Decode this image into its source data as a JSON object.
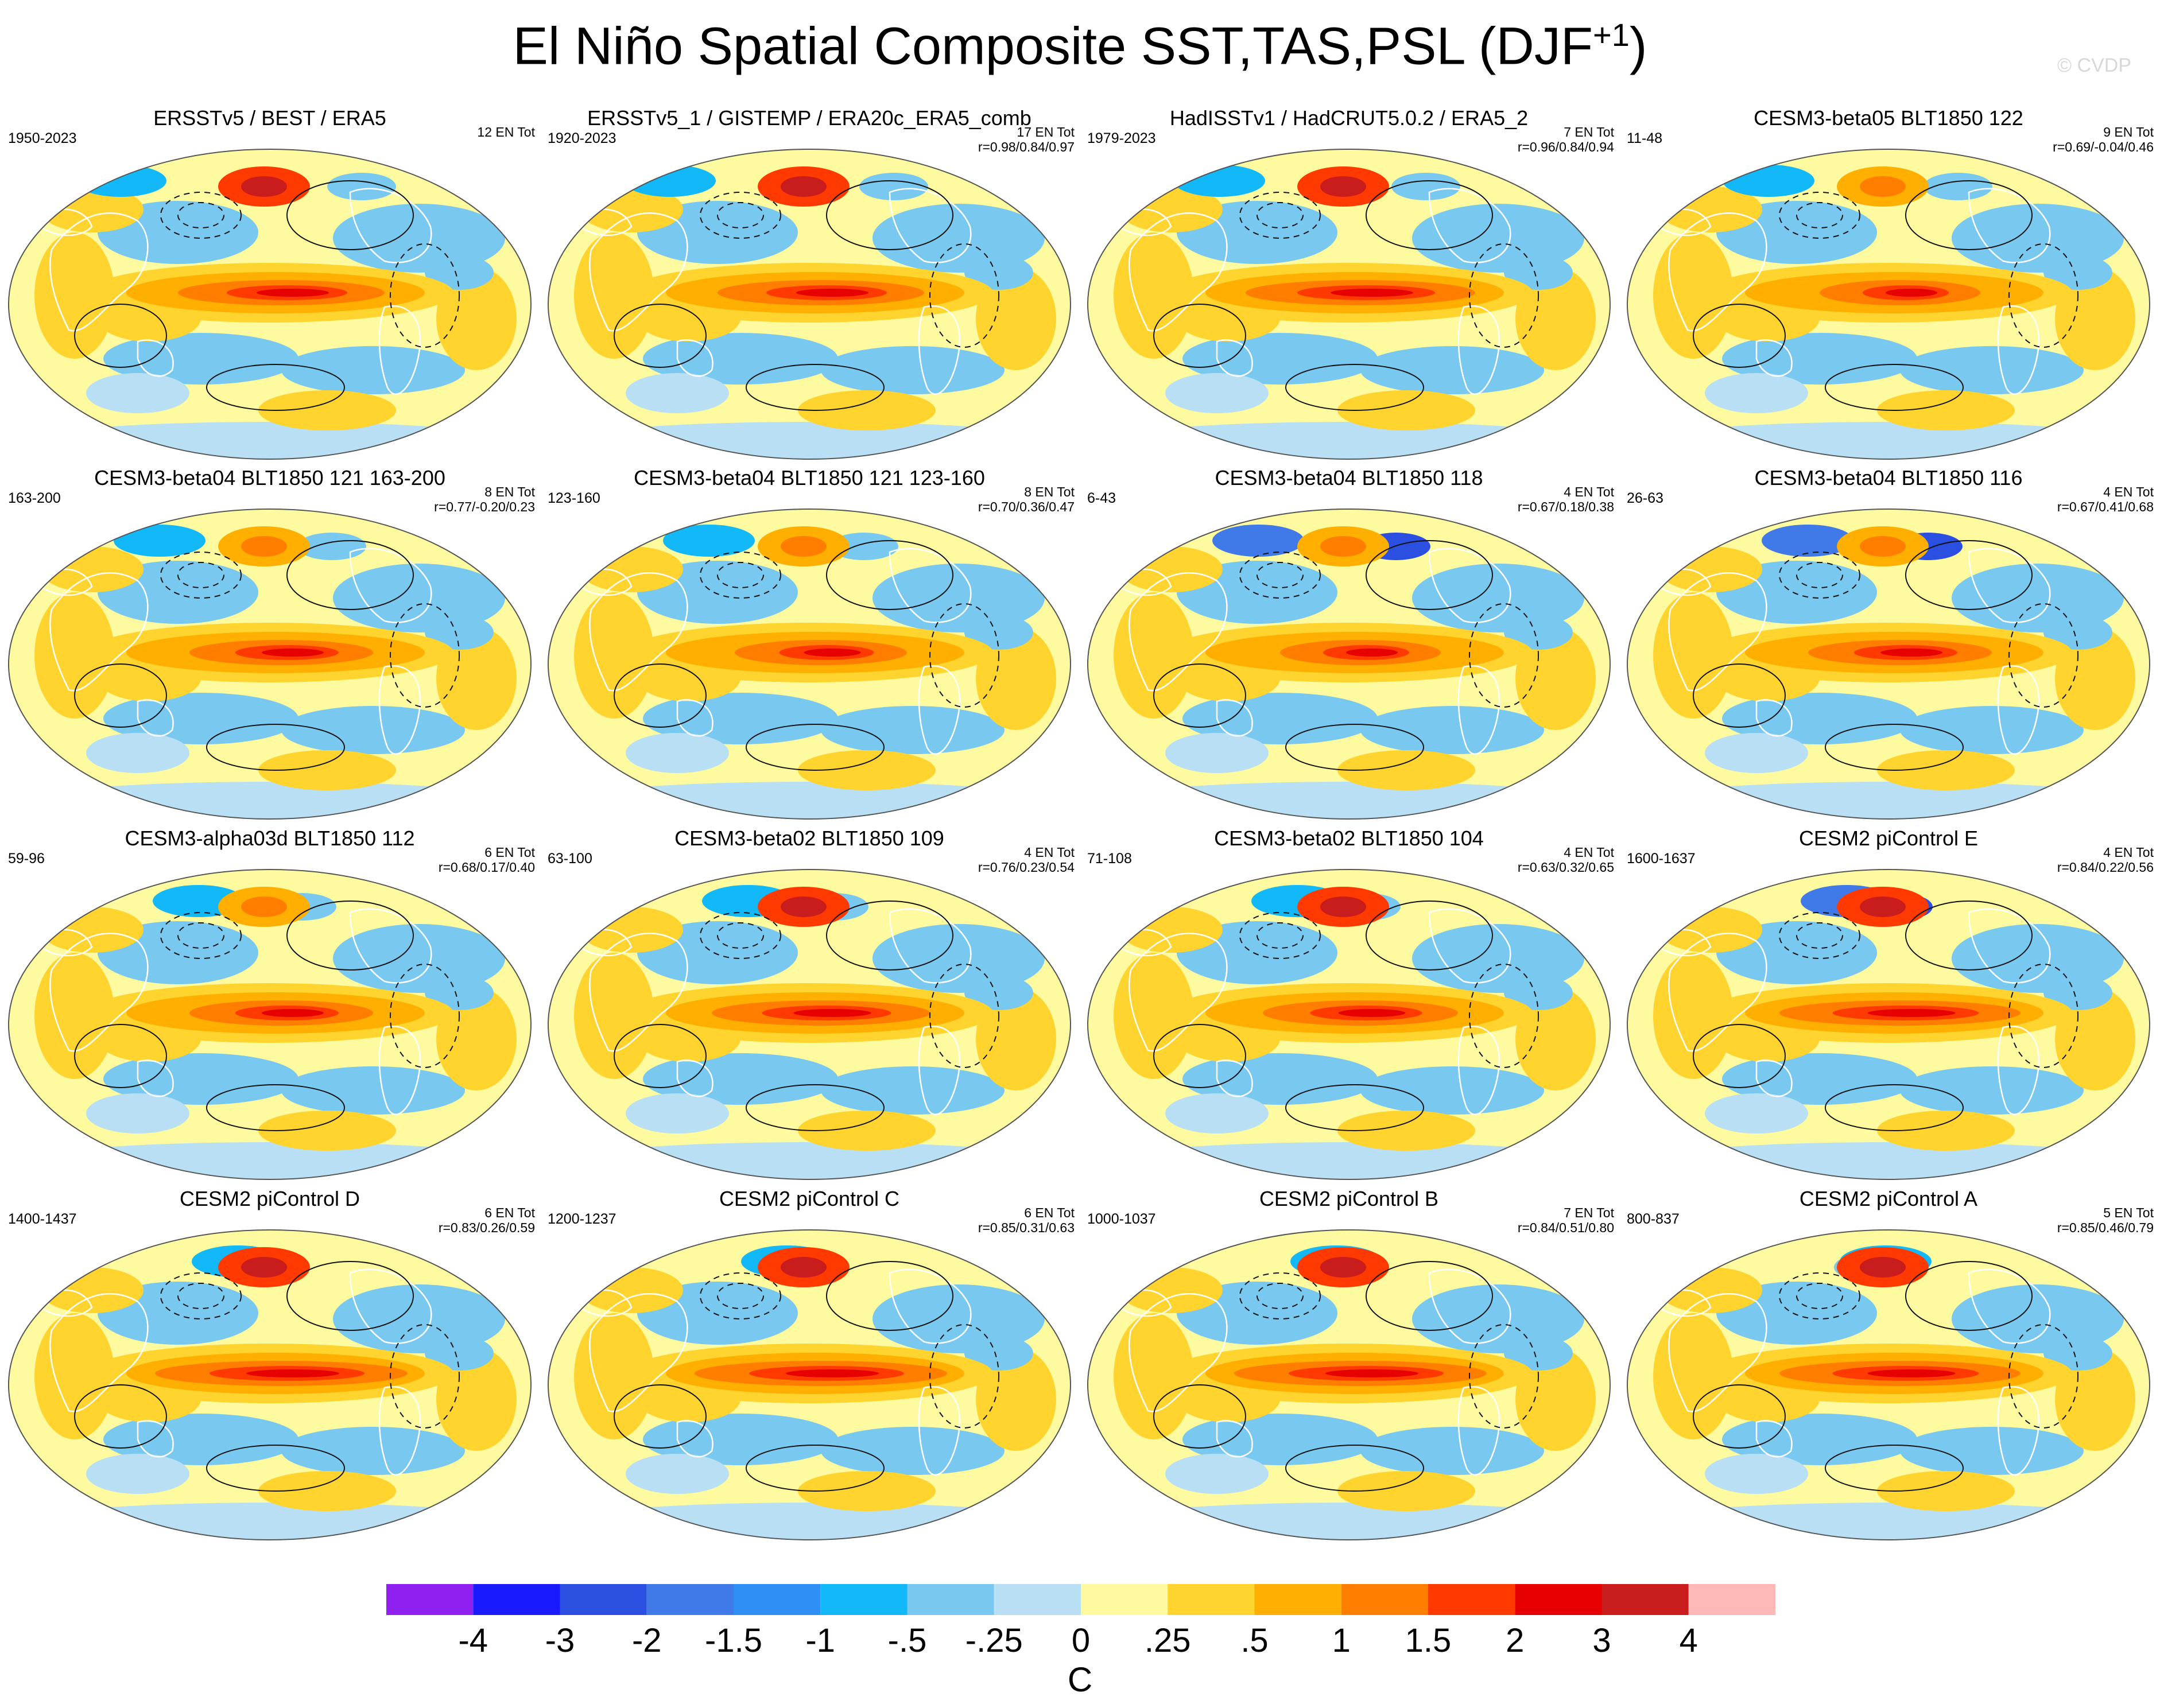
{
  "title": {
    "main": "El Niño Spatial Composite SST,TAS,PSL (DJF",
    "superscript": "+1",
    "close": ")"
  },
  "watermark": "© CVDP",
  "panels": [
    {
      "title": "ERSSTv5 / BEST / ERA5",
      "period": "1950-2023",
      "en_tot": "12 EN Tot",
      "r": "",
      "warm": 0.7,
      "cool": 0.25
    },
    {
      "title": "ERSSTv5_1 / GISTEMP / ERA20c_ERA5_comb",
      "period": "1920-2023",
      "en_tot": "17 EN Tot",
      "r": "r=0.98/0.84/0.97",
      "warm": 0.7,
      "cool": 0.25
    },
    {
      "title": "HadISSTv1 / HadCRUT5.0.2 / ERA5_2",
      "period": "1979-2023",
      "en_tot": "7 EN Tot",
      "r": "r=0.96/0.84/0.94",
      "warm": 0.8,
      "cool": 0.3
    },
    {
      "title": "CESM3-beta05 BLT1850 122",
      "period": "11-48",
      "en_tot": "9 EN Tot",
      "r": "r=0.69/-0.04/0.46",
      "warm": 0.5,
      "cool": 0.3
    },
    {
      "title": "CESM3-beta04 BLT1850 121 163-200",
      "period": "163-200",
      "en_tot": "8 EN Tot",
      "r": "r=0.77/-0.20/0.23",
      "warm": 0.6,
      "cool": 0.3
    },
    {
      "title": "CESM3-beta04 BLT1850 121 123-160",
      "period": "123-160",
      "en_tot": "8 EN Tot",
      "r": "r=0.70/0.36/0.47",
      "warm": 0.55,
      "cool": 0.3
    },
    {
      "title": "CESM3-beta04 BLT1850 118",
      "period": "6-43",
      "en_tot": "4 EN Tot",
      "r": "r=0.67/0.18/0.38",
      "warm": 0.5,
      "cool": 0.4
    },
    {
      "title": "CESM3-beta04 BLT1850 116",
      "period": "26-63",
      "en_tot": "4 EN Tot",
      "r": "r=0.67/0.41/0.68",
      "warm": 0.6,
      "cool": 0.4
    },
    {
      "title": "CESM3-alpha03d BLT1850 112",
      "period": "59-96",
      "en_tot": "6 EN Tot",
      "r": "r=0.68/0.17/0.40",
      "warm": 0.6,
      "cool": 0.35
    },
    {
      "title": "CESM3-beta02 BLT1850 109",
      "period": "63-100",
      "en_tot": "4 EN Tot",
      "r": "r=0.76/0.23/0.54",
      "warm": 0.75,
      "cool": 0.35
    },
    {
      "title": "CESM3-beta02 BLT1850 104",
      "period": "71-108",
      "en_tot": "4 EN Tot",
      "r": "r=0.63/0.32/0.65",
      "warm": 0.65,
      "cool": 0.35
    },
    {
      "title": "CESM2 piControl E",
      "period": "1600-1637",
      "en_tot": "4 EN Tot",
      "r": "r=0.84/0.22/0.56",
      "warm": 0.85,
      "cool": 0.4
    },
    {
      "title": "CESM2 piControl D",
      "period": "1400-1437",
      "en_tot": "6 EN Tot",
      "r": "r=0.83/0.26/0.59",
      "warm": 0.9,
      "cool": 0.3
    },
    {
      "title": "CESM2 piControl C",
      "period": "1200-1237",
      "en_tot": "6 EN Tot",
      "r": "r=0.85/0.31/0.63",
      "warm": 0.9,
      "cool": 0.3
    },
    {
      "title": "CESM2 piControl B",
      "period": "1000-1037",
      "en_tot": "7 EN Tot",
      "r": "r=0.84/0.51/0.80",
      "warm": 0.9,
      "cool": 0.3
    },
    {
      "title": "CESM2 piControl A",
      "period": "800-837",
      "en_tot": "5 EN Tot",
      "r": "r=0.85/0.46/0.79",
      "warm": 0.85,
      "cool": 0.3
    }
  ],
  "colorbar": {
    "unit": "C",
    "labels": [
      "-4",
      "-3",
      "-2",
      "-1.5",
      "-1",
      "-.5",
      "-.25",
      "0",
      ".25",
      ".5",
      "1",
      "1.5",
      "2",
      "3",
      "4"
    ],
    "colors": [
      "#8f20f0",
      "#1a1aff",
      "#2b4fe0",
      "#3f7ae8",
      "#2f8ff5",
      "#12b8f8",
      "#78c8f0",
      "#b8dff3",
      "#fefaa0",
      "#ffd42e",
      "#ffaf00",
      "#ff7e00",
      "#ff3a00",
      "#e60000",
      "#c91c1c",
      "#ffb8b8"
    ]
  }
}
